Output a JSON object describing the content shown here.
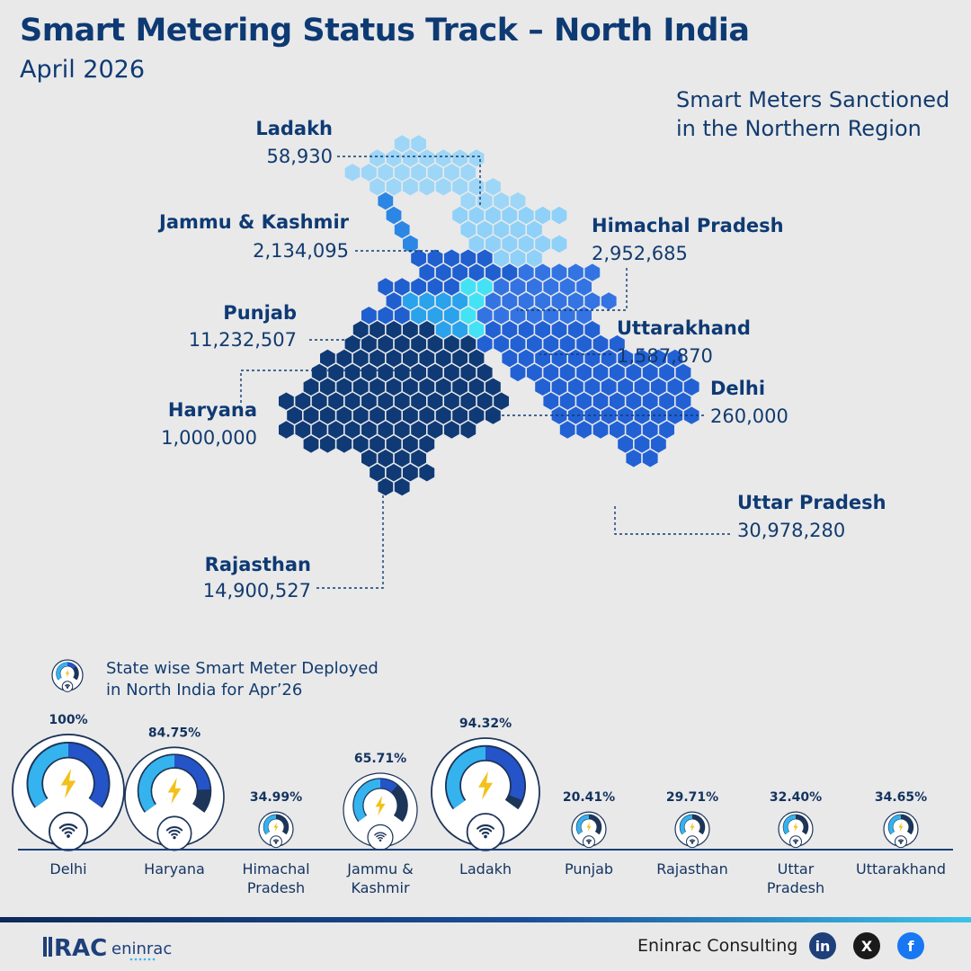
{
  "header": {
    "title": "Smart Metering Status Track – North India",
    "subtitle": "April 2026"
  },
  "map_caption": [
    "Smart Meters Sanctioned",
    "in the Northern Region"
  ],
  "gauge_title": [
    "State wise Smart Meter Deployed",
    "in North India for Apr’26"
  ],
  "colors": {
    "ladakh": "#9ed6f7",
    "himachal_pradesh": "#8fd1f8",
    "jammu_kashmir": "#2c86e4",
    "punjab": "#1f5fcf",
    "uttarakhand": "#3374e2",
    "haryana": "#2aa2ec",
    "delhi": "#44e2f5",
    "uttar_pradesh": "#2261d4",
    "rajasthan": "#0f3a75",
    "gauge_light": "#35b3ef",
    "gauge_dark": "#2554c9",
    "bolt": "#f2c21b"
  },
  "chart_data": [
    {
      "type": "table",
      "title": "Smart Meters Sanctioned in the Northern Region",
      "series": [
        {
          "state": "Ladakh",
          "value": "58,930"
        },
        {
          "state": "Jammu & Kashmir",
          "value": "2,134,095"
        },
        {
          "state": "Himachal Pradesh",
          "value": "2,952,685"
        },
        {
          "state": "Punjab",
          "value": "11,232,507"
        },
        {
          "state": "Uttarakhand",
          "value": "1,587,870"
        },
        {
          "state": "Haryana",
          "value": "1,000,000"
        },
        {
          "state": "Delhi",
          "value": "260,000"
        },
        {
          "state": "Uttar Pradesh",
          "value": "30,978,280"
        },
        {
          "state": "Rajasthan",
          "value": "14,900,527"
        }
      ]
    },
    {
      "type": "bar",
      "title": "State wise Smart Meter Deployed in North India for Apr’26",
      "categories": [
        "Delhi",
        "Haryana",
        "Himachal Pradesh",
        "Jammu & Kashmir",
        "Ladakh",
        "Punjab",
        "Rajasthan",
        "Uttar Pradesh",
        "Uttarakhand"
      ],
      "labels": [
        "Delhi",
        "Haryana",
        "Himachal\nPradesh",
        "Jammu &\nKashmir",
        "Ladakh",
        "Punjab",
        "Rajasthan",
        "Uttar\nPradesh",
        "Uttarakhand"
      ],
      "values": [
        100,
        84.75,
        34.99,
        65.71,
        94.32,
        20.41,
        29.71,
        32.4,
        34.65
      ],
      "value_labels": [
        "100%",
        "84.75%",
        "34.99%",
        "65.71%",
        "94.32%",
        "20.41%",
        "29.71%",
        "32.40%",
        "34.65%"
      ]
    }
  ],
  "footer": {
    "brand": "RAC",
    "brand_name": "eninrac",
    "company": "Eninrac Consulting",
    "socials": [
      {
        "icon": "linkedin-icon",
        "label": "in"
      },
      {
        "icon": "x-icon",
        "label": "X"
      },
      {
        "icon": "facebook-icon",
        "label": "f"
      }
    ]
  }
}
